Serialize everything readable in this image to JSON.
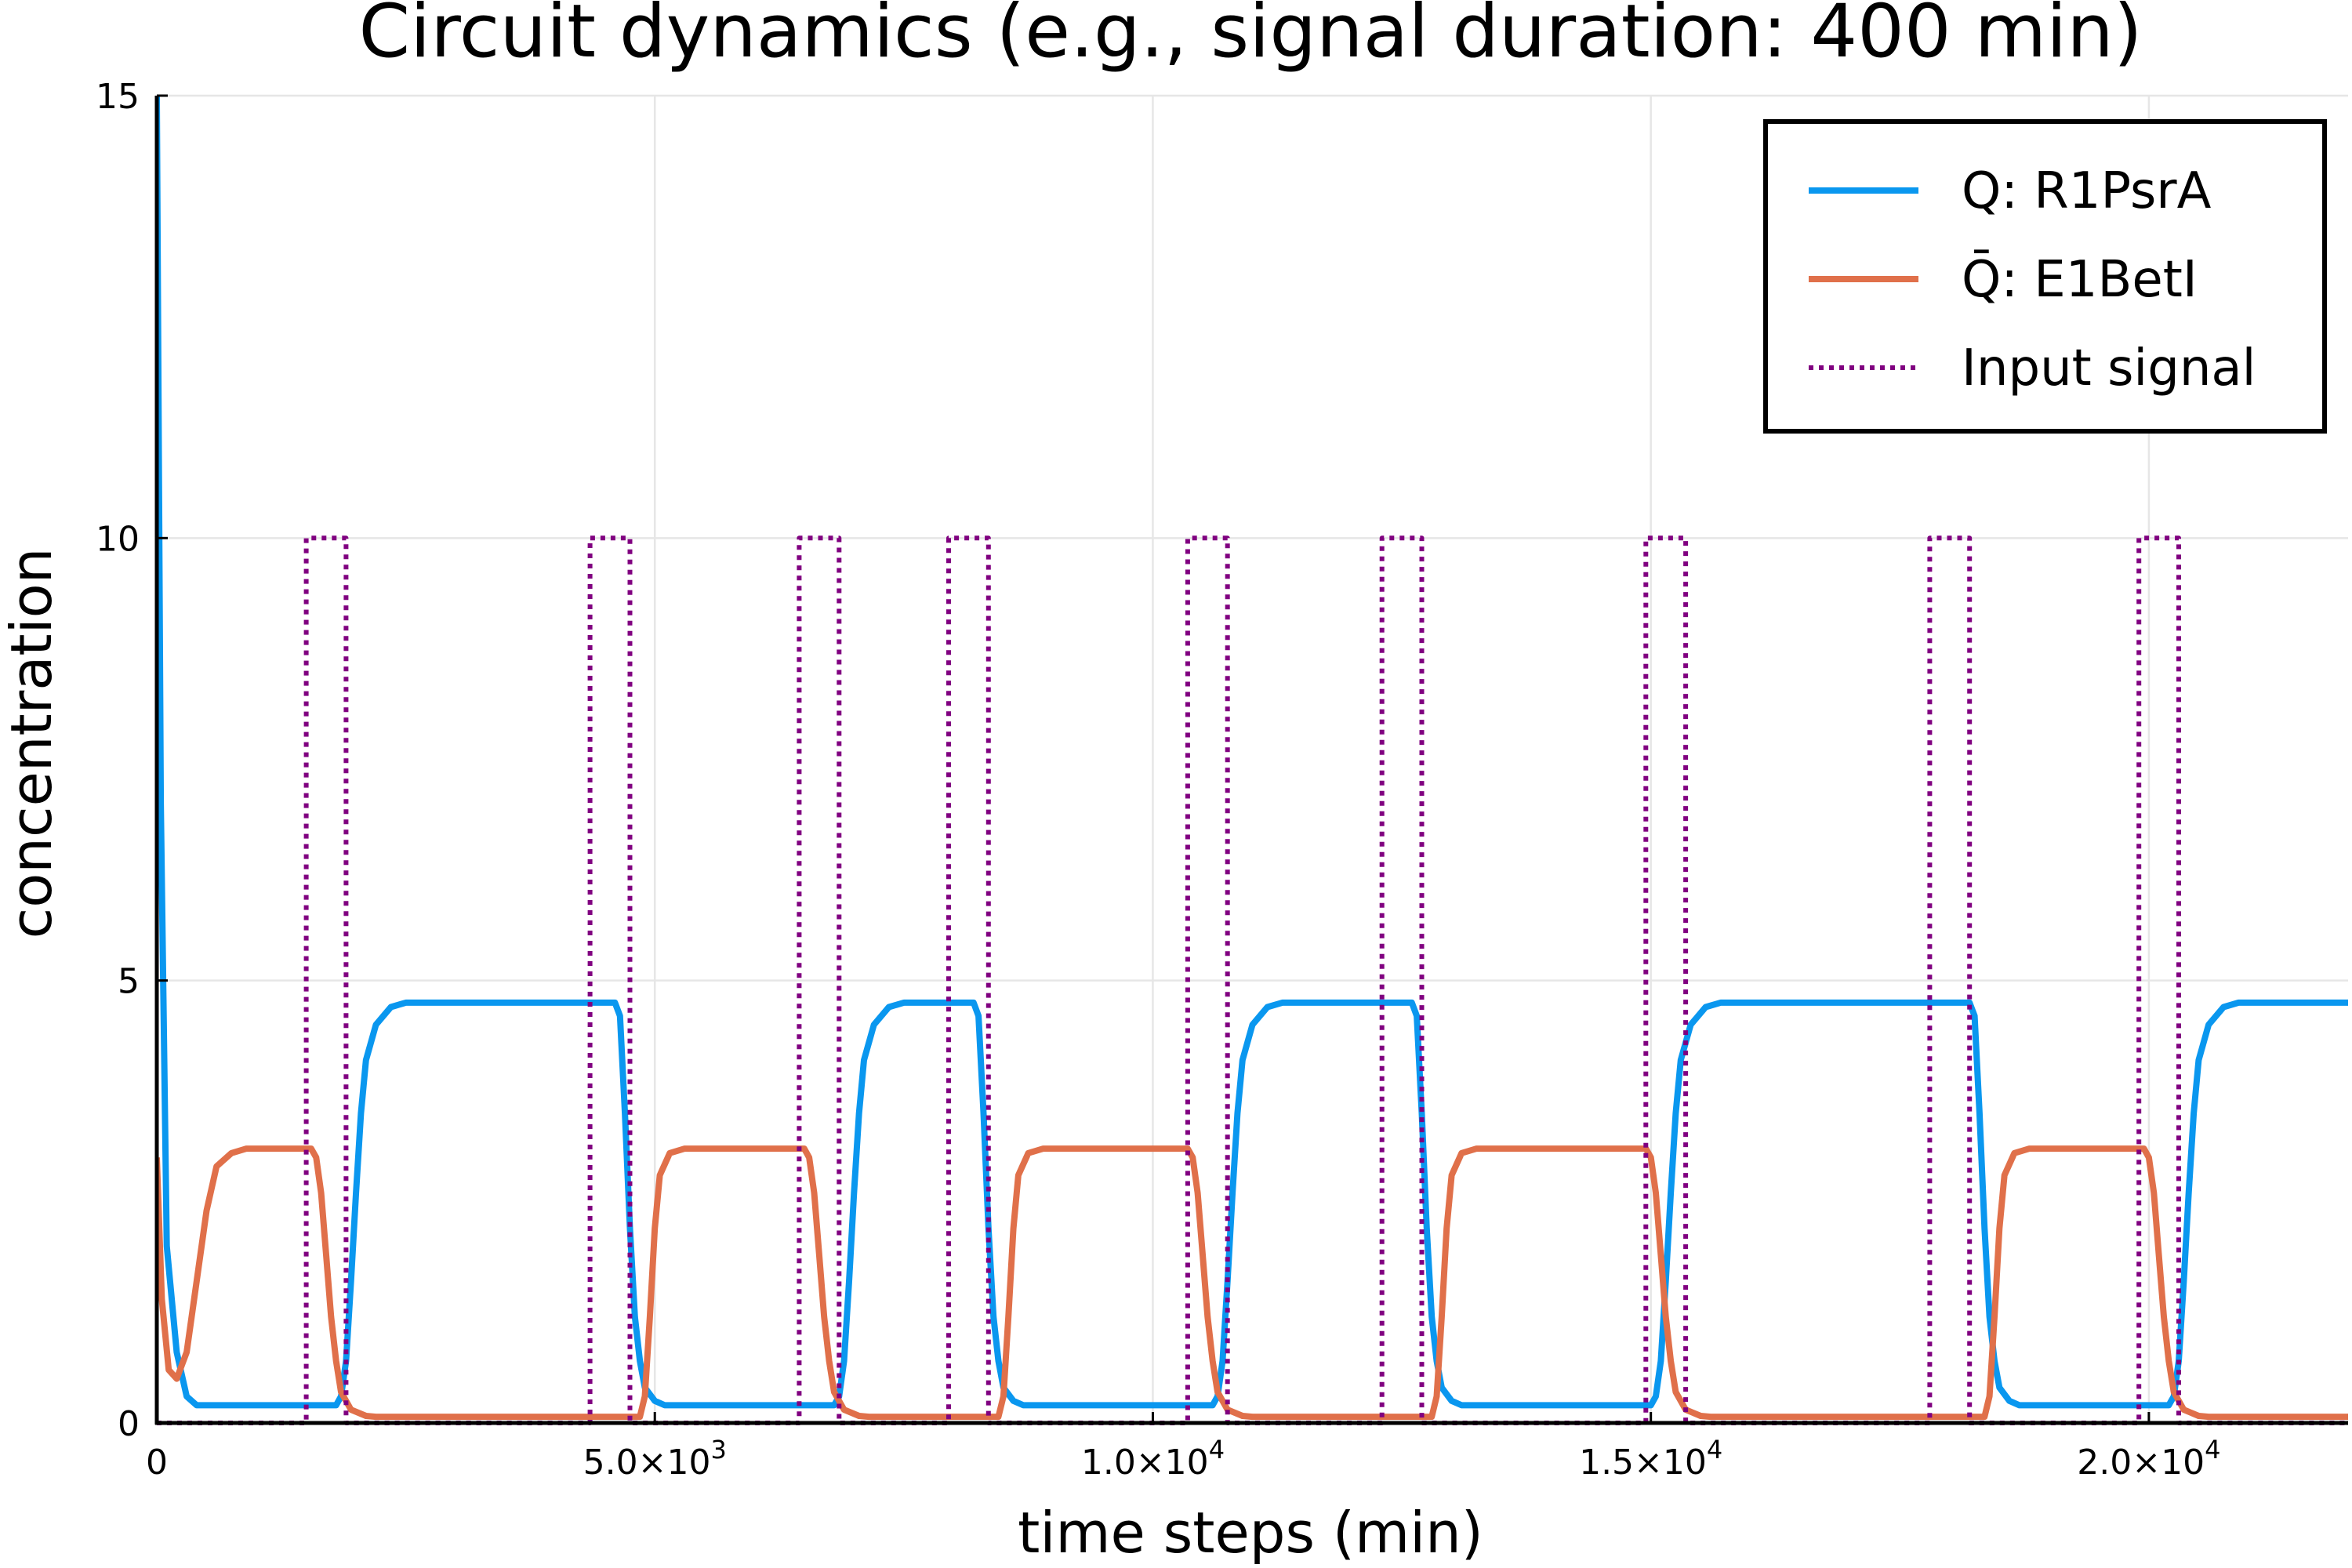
{
  "chart_data": {
    "type": "line",
    "title": "Circuit dynamics (e.g., signal duration: 400 min)",
    "xlabel": "time steps (min)",
    "ylabel": "concentration",
    "xlim": [
      0,
      22000
    ],
    "ylim": [
      0,
      15
    ],
    "grid": true,
    "legend_position": "top-right",
    "x_ticks": [
      {
        "value": 0,
        "label": "0"
      },
      {
        "value": 5000,
        "base": "5.0×10",
        "exp": "3"
      },
      {
        "value": 10000,
        "base": "1.0×10",
        "exp": "4"
      },
      {
        "value": 15000,
        "base": "1.5×10",
        "exp": "4"
      },
      {
        "value": 20000,
        "base": "2.0×10",
        "exp": "4"
      }
    ],
    "y_ticks": [
      {
        "value": 0,
        "label": "0"
      },
      {
        "value": 5,
        "label": "5"
      },
      {
        "value": 10,
        "label": "10"
      },
      {
        "value": 15,
        "label": "15"
      }
    ],
    "series": [
      {
        "name": "Q: R1PsrA",
        "color": "#0a97ef",
        "style": "solid",
        "points": [
          [
            0,
            15
          ],
          [
            40,
            7
          ],
          [
            100,
            2
          ],
          [
            200,
            0.8
          ],
          [
            300,
            0.3
          ],
          [
            400,
            0.2
          ],
          [
            1800,
            0.2
          ],
          [
            1850,
            0.3
          ],
          [
            1900,
            0.7
          ],
          [
            1950,
            1.6
          ],
          [
            2000,
            2.6
          ],
          [
            2050,
            3.5
          ],
          [
            2100,
            4.1
          ],
          [
            2200,
            4.5
          ],
          [
            2350,
            4.7
          ],
          [
            2500,
            4.75
          ],
          [
            4600,
            4.75
          ],
          [
            4650,
            4.6
          ],
          [
            4700,
            3.5
          ],
          [
            4750,
            2.2
          ],
          [
            4800,
            1.2
          ],
          [
            4850,
            0.7
          ],
          [
            4900,
            0.4
          ],
          [
            5000,
            0.25
          ],
          [
            5100,
            0.2
          ],
          [
            6800,
            0.2
          ],
          [
            6850,
            0.3
          ],
          [
            6900,
            0.7
          ],
          [
            6950,
            1.6
          ],
          [
            7000,
            2.6
          ],
          [
            7050,
            3.5
          ],
          [
            7100,
            4.1
          ],
          [
            7200,
            4.5
          ],
          [
            7350,
            4.7
          ],
          [
            7500,
            4.75
          ],
          [
            8200,
            4.75
          ],
          [
            8250,
            4.6
          ],
          [
            8300,
            3.5
          ],
          [
            8350,
            2.2
          ],
          [
            8400,
            1.2
          ],
          [
            8450,
            0.7
          ],
          [
            8500,
            0.4
          ],
          [
            8600,
            0.25
          ],
          [
            8700,
            0.2
          ],
          [
            10600,
            0.2
          ],
          [
            10650,
            0.3
          ],
          [
            10700,
            0.7
          ],
          [
            10750,
            1.6
          ],
          [
            10800,
            2.6
          ],
          [
            10850,
            3.5
          ],
          [
            10900,
            4.1
          ],
          [
            11000,
            4.5
          ],
          [
            11150,
            4.7
          ],
          [
            11300,
            4.75
          ],
          [
            12600,
            4.75
          ],
          [
            12650,
            4.6
          ],
          [
            12700,
            3.5
          ],
          [
            12750,
            2.2
          ],
          [
            12800,
            1.2
          ],
          [
            12850,
            0.7
          ],
          [
            12900,
            0.4
          ],
          [
            13000,
            0.25
          ],
          [
            13100,
            0.2
          ],
          [
            15000,
            0.2
          ],
          [
            15050,
            0.3
          ],
          [
            15100,
            0.7
          ],
          [
            15150,
            1.6
          ],
          [
            15200,
            2.6
          ],
          [
            15250,
            3.5
          ],
          [
            15300,
            4.1
          ],
          [
            15400,
            4.5
          ],
          [
            15550,
            4.7
          ],
          [
            15700,
            4.75
          ],
          [
            18200,
            4.75
          ],
          [
            18250,
            4.6
          ],
          [
            18300,
            3.5
          ],
          [
            18350,
            2.2
          ],
          [
            18400,
            1.2
          ],
          [
            18450,
            0.7
          ],
          [
            18500,
            0.4
          ],
          [
            18600,
            0.25
          ],
          [
            18700,
            0.2
          ],
          [
            20200,
            0.2
          ],
          [
            20250,
            0.3
          ],
          [
            20300,
            0.7
          ],
          [
            20350,
            1.6
          ],
          [
            20400,
            2.6
          ],
          [
            20450,
            3.5
          ],
          [
            20500,
            4.1
          ],
          [
            20600,
            4.5
          ],
          [
            20750,
            4.7
          ],
          [
            20900,
            4.75
          ],
          [
            22000,
            4.75
          ]
        ]
      },
      {
        "name": "Q̄: E1BetI",
        "color": "#e0704a",
        "style": "solid",
        "points": [
          [
            0,
            3
          ],
          [
            50,
            1.4
          ],
          [
            120,
            0.6
          ],
          [
            200,
            0.5
          ],
          [
            300,
            0.8
          ],
          [
            400,
            1.6
          ],
          [
            500,
            2.4
          ],
          [
            600,
            2.9
          ],
          [
            750,
            3.05
          ],
          [
            900,
            3.1
          ],
          [
            1550,
            3.1
          ],
          [
            1600,
            3.0
          ],
          [
            1650,
            2.6
          ],
          [
            1700,
            1.9
          ],
          [
            1750,
            1.2
          ],
          [
            1800,
            0.7
          ],
          [
            1850,
            0.35
          ],
          [
            1950,
            0.15
          ],
          [
            2100,
            0.08
          ],
          [
            2200,
            0.07
          ],
          [
            4850,
            0.07
          ],
          [
            4900,
            0.3
          ],
          [
            4950,
            1.2
          ],
          [
            5000,
            2.2
          ],
          [
            5050,
            2.8
          ],
          [
            5150,
            3.05
          ],
          [
            5300,
            3.1
          ],
          [
            6500,
            3.1
          ],
          [
            6550,
            3.0
          ],
          [
            6600,
            2.6
          ],
          [
            6650,
            1.9
          ],
          [
            6700,
            1.2
          ],
          [
            6750,
            0.7
          ],
          [
            6800,
            0.35
          ],
          [
            6900,
            0.15
          ],
          [
            7050,
            0.08
          ],
          [
            7150,
            0.07
          ],
          [
            8450,
            0.07
          ],
          [
            8500,
            0.3
          ],
          [
            8550,
            1.2
          ],
          [
            8600,
            2.2
          ],
          [
            8650,
            2.8
          ],
          [
            8750,
            3.05
          ],
          [
            8900,
            3.1
          ],
          [
            10350,
            3.1
          ],
          [
            10400,
            3.0
          ],
          [
            10450,
            2.6
          ],
          [
            10500,
            1.9
          ],
          [
            10550,
            1.2
          ],
          [
            10600,
            0.7
          ],
          [
            10650,
            0.35
          ],
          [
            10750,
            0.15
          ],
          [
            10900,
            0.08
          ],
          [
            11000,
            0.07
          ],
          [
            12800,
            0.07
          ],
          [
            12850,
            0.3
          ],
          [
            12900,
            1.2
          ],
          [
            12950,
            2.2
          ],
          [
            13000,
            2.8
          ],
          [
            13100,
            3.05
          ],
          [
            13250,
            3.1
          ],
          [
            14950,
            3.1
          ],
          [
            15000,
            3.0
          ],
          [
            15050,
            2.6
          ],
          [
            15100,
            1.9
          ],
          [
            15150,
            1.2
          ],
          [
            15200,
            0.7
          ],
          [
            15250,
            0.35
          ],
          [
            15350,
            0.15
          ],
          [
            15500,
            0.08
          ],
          [
            15600,
            0.07
          ],
          [
            18350,
            0.07
          ],
          [
            18400,
            0.3
          ],
          [
            18450,
            1.2
          ],
          [
            18500,
            2.2
          ],
          [
            18550,
            2.8
          ],
          [
            18650,
            3.05
          ],
          [
            18800,
            3.1
          ],
          [
            19950,
            3.1
          ],
          [
            20000,
            3.0
          ],
          [
            20050,
            2.6
          ],
          [
            20100,
            1.9
          ],
          [
            20150,
            1.2
          ],
          [
            20200,
            0.7
          ],
          [
            20250,
            0.35
          ],
          [
            20350,
            0.15
          ],
          [
            20500,
            0.08
          ],
          [
            20600,
            0.07
          ],
          [
            22000,
            0.07
          ]
        ]
      },
      {
        "name": "Input signal",
        "color": "#800080",
        "style": "dotted",
        "points": [
          [
            0,
            0
          ],
          [
            1500,
            0
          ],
          [
            1500,
            10
          ],
          [
            1900,
            10
          ],
          [
            1900,
            0
          ],
          [
            4350,
            0
          ],
          [
            4350,
            10
          ],
          [
            4750,
            10
          ],
          [
            4750,
            0
          ],
          [
            6450,
            0
          ],
          [
            6450,
            10
          ],
          [
            6850,
            10
          ],
          [
            6850,
            0
          ],
          [
            7950,
            0
          ],
          [
            7950,
            10
          ],
          [
            8350,
            10
          ],
          [
            8350,
            0
          ],
          [
            10350,
            0
          ],
          [
            10350,
            10
          ],
          [
            10750,
            10
          ],
          [
            10750,
            0
          ],
          [
            12300,
            0
          ],
          [
            12300,
            10
          ],
          [
            12700,
            10
          ],
          [
            12700,
            0
          ],
          [
            14950,
            0
          ],
          [
            14950,
            10
          ],
          [
            15350,
            10
          ],
          [
            15350,
            0
          ],
          [
            17800,
            0
          ],
          [
            17800,
            10
          ],
          [
            18200,
            10
          ],
          [
            18200,
            0
          ],
          [
            19900,
            0
          ],
          [
            19900,
            10
          ],
          [
            20300,
            10
          ],
          [
            20300,
            0
          ],
          [
            22000,
            0
          ]
        ]
      }
    ]
  }
}
